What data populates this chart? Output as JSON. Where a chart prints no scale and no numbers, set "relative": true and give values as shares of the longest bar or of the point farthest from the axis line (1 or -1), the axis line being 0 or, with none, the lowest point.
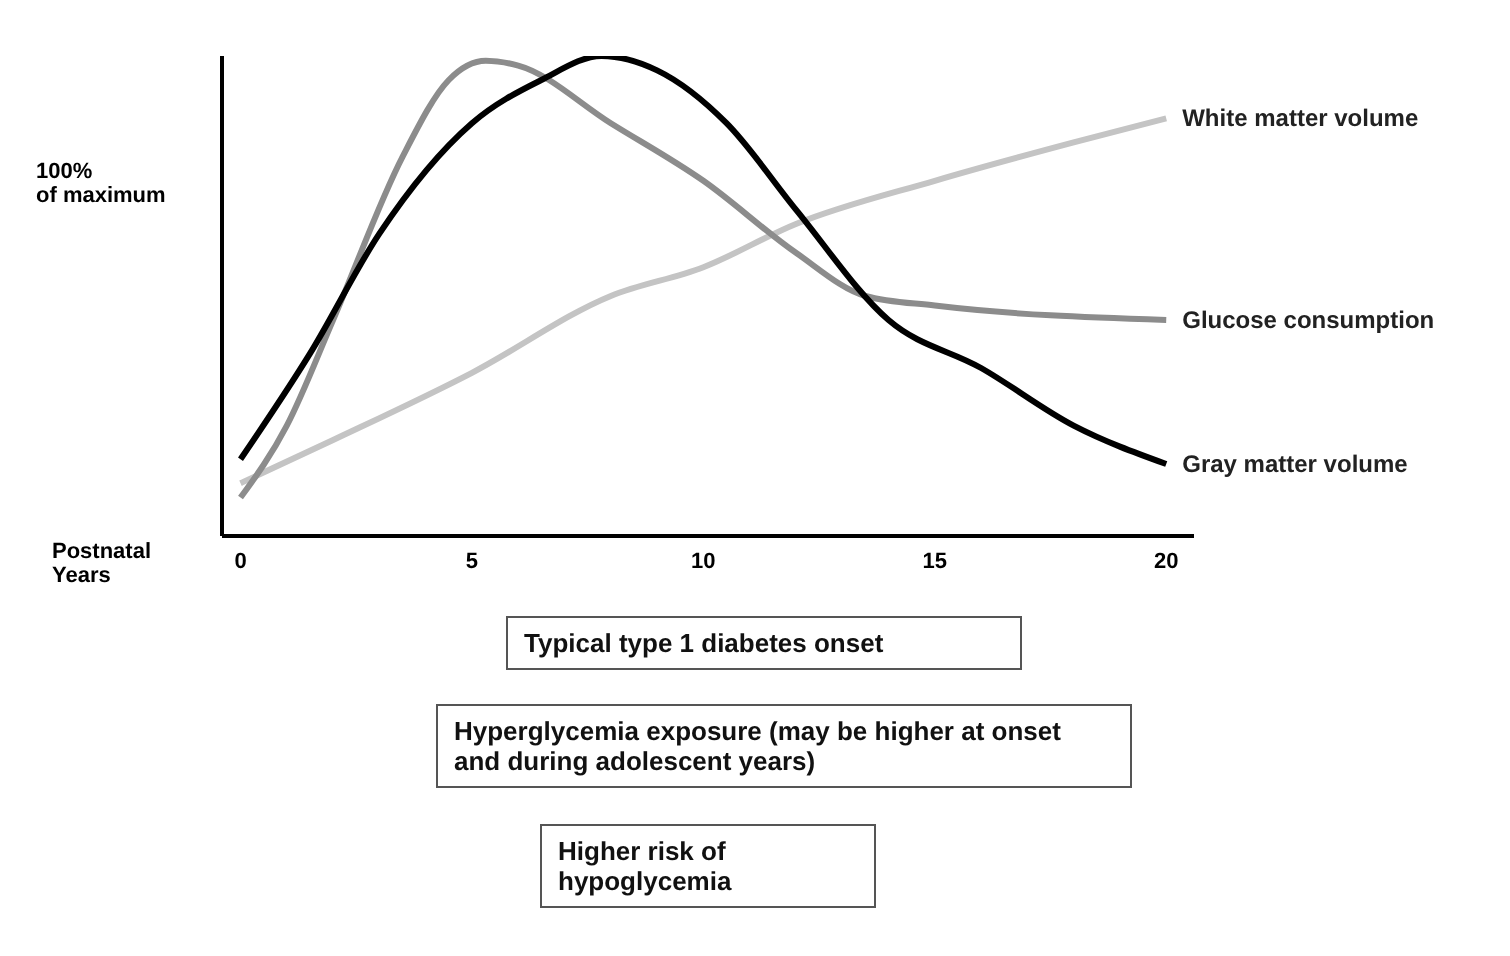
{
  "chart_data": {
    "type": "line",
    "relative": true,
    "ylabel": "100%\nof maximum",
    "xlabel": "Postnatal\nYears",
    "xlim": [
      -0.4,
      20.6
    ],
    "xticks": [
      0,
      5,
      10,
      15,
      20
    ],
    "marker": "none",
    "line_style": "solid",
    "series": [
      {
        "name": "White matter  volume",
        "color": "#c4c4c4",
        "x": [
          0,
          2,
          5,
          8,
          10,
          12,
          15,
          18,
          20
        ],
        "values": [
          0.11,
          0.2,
          0.34,
          0.5,
          0.56,
          0.65,
          0.74,
          0.82,
          0.87
        ]
      },
      {
        "name": "Glucose consumption",
        "color": "#8c8c8c",
        "x": [
          0,
          1,
          2,
          3.5,
          4.5,
          5.3,
          6,
          8,
          10,
          12,
          13.5,
          15,
          20
        ],
        "values": [
          0.08,
          0.23,
          0.45,
          0.79,
          0.95,
          0.99,
          0.98,
          0.86,
          0.74,
          0.59,
          0.5,
          0.48,
          0.45
        ]
      },
      {
        "name": "Gray matter volume",
        "color": "#000000",
        "x": [
          0,
          1.5,
          3,
          5,
          6.5,
          7.8,
          9,
          10.5,
          12,
          14,
          16,
          18,
          20
        ],
        "values": [
          0.16,
          0.38,
          0.63,
          0.86,
          0.95,
          1,
          0.97,
          0.86,
          0.68,
          0.45,
          0.35,
          0.23,
          0.15
        ]
      }
    ],
    "annotations": [
      "Typical type 1 diabetes onset",
      "Hyperglycemia exposure (may be higher at onset and during adolescent years)",
      "Higher risk of\nhypoglycemia"
    ]
  }
}
